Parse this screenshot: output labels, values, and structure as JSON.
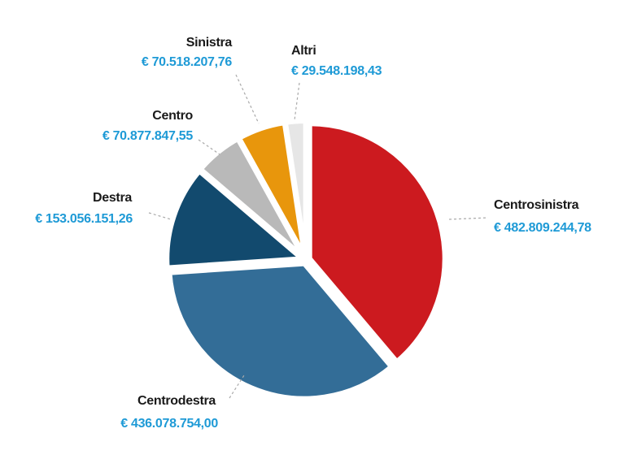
{
  "chart_data": {
    "type": "pie",
    "categories": [
      "Centrosinistra",
      "Centrodestra",
      "Destra",
      "Centro",
      "Sinistra",
      "Altri"
    ],
    "values": [
      482809244.78,
      436078754.0,
      153056151.26,
      70877847.55,
      70518207.76,
      29548198.43
    ],
    "value_labels": [
      "€ 482.809.244,78",
      "€ 436.078.754,00",
      "€ 153.056.151,26",
      "€ 70.877.847,55",
      "€ 70.518.207,76",
      "€ 29.548.198,43"
    ],
    "colors": [
      "#cc1a1f",
      "#336d97",
      "#124a6e",
      "#b9b9b9",
      "#e8960c",
      "#e6e6e6"
    ]
  }
}
